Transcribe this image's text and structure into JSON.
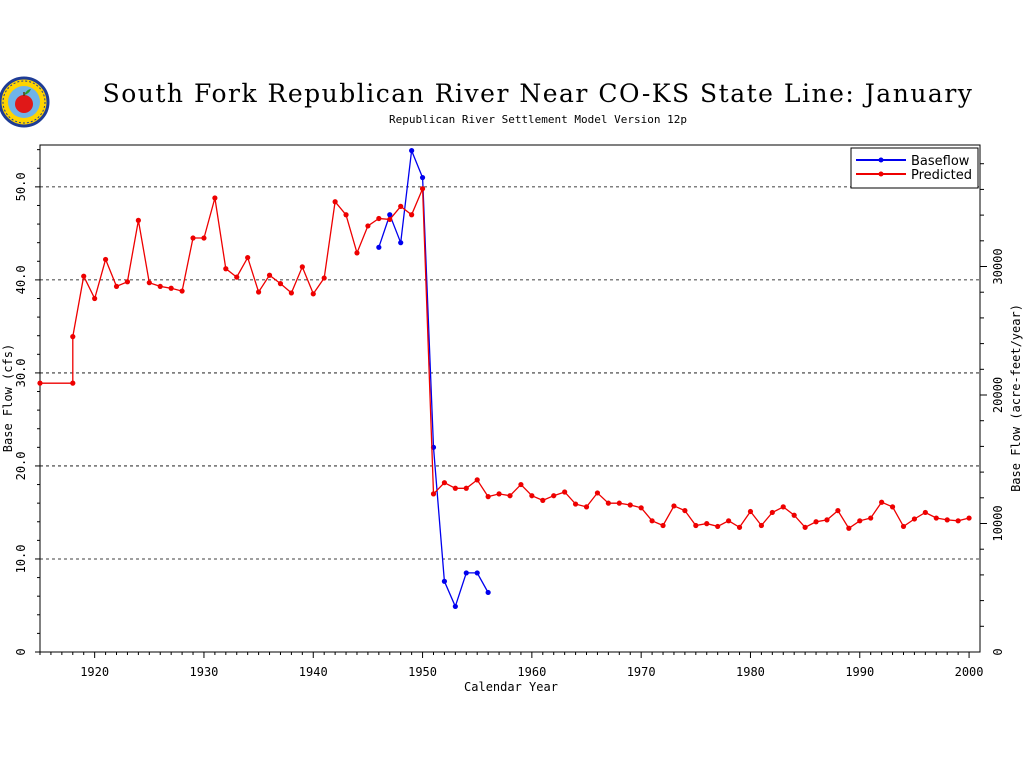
{
  "logo": {
    "name": "apple-seal-logo"
  },
  "colors": {
    "baseflow": "#0000ee",
    "predicted": "#ee0000",
    "grid": "#000000"
  },
  "chart_data": {
    "type": "line",
    "title": "South Fork Republican River Near CO-KS State Line: January",
    "subtitle": "Republican River Settlement Model Version 12p",
    "xlabel": "Calendar Year",
    "ylabel": "Base Flow (cfs)",
    "ylabel_right": "Base Flow (acre-feet/year)",
    "xlim": [
      1915,
      2001
    ],
    "ylim": [
      0,
      54.5
    ],
    "xticks": [
      "1920",
      "1930",
      "1940",
      "1950",
      "1960",
      "1970",
      "1980",
      "1990",
      "2000"
    ],
    "yticks": [
      "0",
      "10.0",
      "20.0",
      "30.0",
      "40.0",
      "50.0"
    ],
    "yticks_right": [
      "0",
      "10000",
      "20000",
      "30000"
    ],
    "grid": "horizontal dashed at 10,20,30,40,50",
    "legend_position": "top-right",
    "series": [
      {
        "name": "Baseflow",
        "x": [
          1946,
          1947,
          1948,
          1949,
          1950,
          1951,
          1952,
          1953,
          1954,
          1955,
          1956
        ],
        "y": [
          43.5,
          47.0,
          44.0,
          53.9,
          51.0,
          22.0,
          7.6,
          4.9,
          8.5,
          8.5,
          6.4
        ]
      },
      {
        "name": "Predicted",
        "x": [
          1915,
          1918,
          1918,
          1919,
          1920,
          1921,
          1922,
          1923,
          1924,
          1925,
          1926,
          1927,
          1928,
          1929,
          1930,
          1931,
          1932,
          1933,
          1934,
          1935,
          1936,
          1937,
          1938,
          1939,
          1940,
          1941,
          1942,
          1943,
          1944,
          1945,
          1946,
          1947,
          1948,
          1949,
          1950,
          1951,
          1952,
          1953,
          1954,
          1955,
          1956,
          1957,
          1958,
          1959,
          1960,
          1961,
          1962,
          1963,
          1964,
          1965,
          1966,
          1967,
          1968,
          1969,
          1970,
          1971,
          1972,
          1973,
          1974,
          1975,
          1976,
          1977,
          1978,
          1979,
          1980,
          1981,
          1982,
          1983,
          1984,
          1985,
          1986,
          1987,
          1988,
          1989,
          1990,
          1991,
          1992,
          1993,
          1994,
          1995,
          1996,
          1997,
          1998,
          1999,
          2000
        ],
        "y": [
          28.9,
          28.9,
          33.9,
          40.4,
          38.0,
          42.2,
          39.3,
          39.8,
          46.4,
          39.7,
          39.3,
          39.1,
          38.8,
          44.5,
          44.5,
          48.8,
          41.2,
          40.3,
          42.4,
          38.7,
          40.5,
          39.6,
          38.6,
          41.4,
          38.5,
          40.2,
          48.4,
          47.0,
          42.9,
          45.8,
          46.6,
          46.5,
          47.9,
          47.0,
          49.8,
          17.0,
          18.2,
          17.6,
          17.6,
          18.5,
          16.7,
          17.0,
          16.8,
          18.0,
          16.8,
          16.3,
          16.8,
          17.2,
          15.9,
          15.6,
          17.1,
          16.0,
          16.0,
          15.8,
          15.5,
          14.1,
          13.6,
          15.7,
          15.2,
          13.6,
          13.8,
          13.5,
          14.1,
          13.4,
          15.1,
          13.6,
          15.0,
          15.6,
          14.7,
          13.4,
          14.0,
          14.2,
          15.2,
          13.3,
          14.1,
          14.4,
          16.1,
          15.6,
          13.5,
          14.3,
          15.0,
          14.4,
          14.2,
          14.1,
          14.4
        ]
      }
    ]
  }
}
